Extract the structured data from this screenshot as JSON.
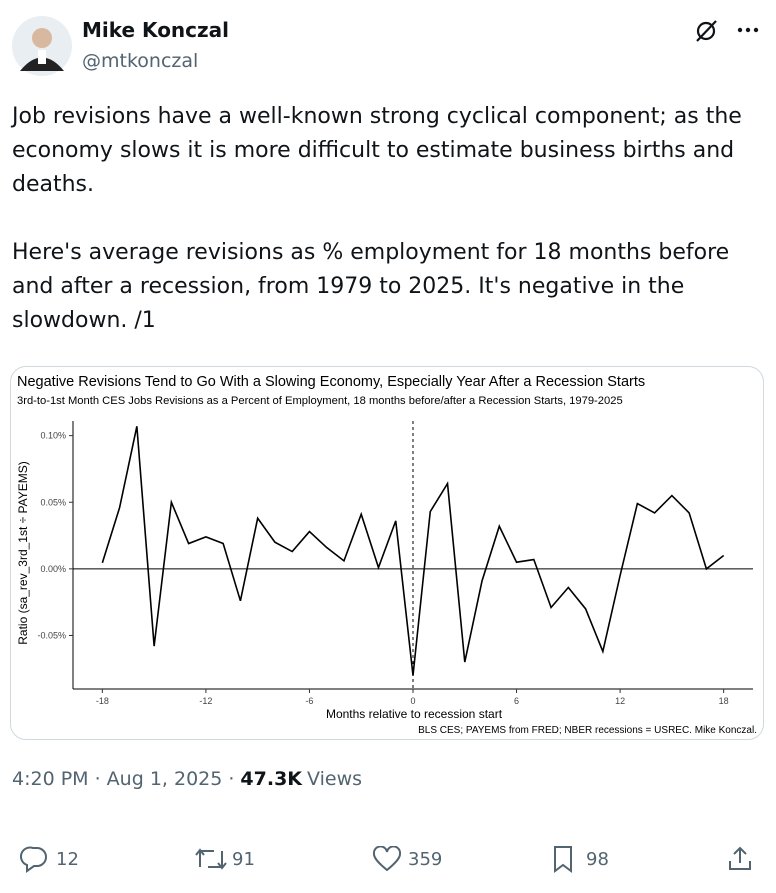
{
  "tweet": {
    "name": "Mike Konczal",
    "handle": "@mtkonczal",
    "paragraphs": [
      "Job revisions have a well-known strong cyclical component; as the economy slows it is more difficult to estimate business births and deaths.",
      "Here's average revisions as % employment for 18 months before and after a recession, from 1979 to 2025.  It's negative in the slowdown. /1"
    ],
    "timestamp": "4:20 PM · Aug 1, 2025 ·",
    "views": "47.3K",
    "views_label": "Views",
    "replies": 12,
    "reposts": 91,
    "likes": 359,
    "bookmarks": 98
  },
  "chart_data": {
    "type": "line",
    "title": "Negative Revisions Tend to Go With a Slowing Economy, Especially Year After a Recession Starts",
    "subtitle": "3rd-to-1st Month CES Jobs Revisions as a Percent of Employment, 18 months before/after a Recession Starts, 1979-2025",
    "xlabel": "Months relative to recession start",
    "ylabel": "Ratio (sa_rev_3rd_1st ÷ PAYEMS)",
    "caption": "BLS CES; PAYEMS from FRED; NBER recessions = USREC. Mike Konczal.",
    "x": [
      -18,
      -17,
      -16,
      -15,
      -14,
      -13,
      -12,
      -11,
      -10,
      -9,
      -8,
      -7,
      -6,
      -5,
      -4,
      -3,
      -2,
      -1,
      0,
      1,
      2,
      3,
      4,
      5,
      6,
      7,
      8,
      9,
      10,
      11,
      12,
      13,
      14,
      15,
      16,
      17,
      18
    ],
    "series": [
      {
        "name": "Ratio",
        "color": "#000000",
        "values": [
          0.0045,
          0.046,
          0.107,
          -0.058,
          0.05,
          0.019,
          0.024,
          0.019,
          -0.024,
          0.038,
          0.02,
          0.013,
          0.028,
          0.016,
          0.006,
          0.041,
          0.001,
          0.036,
          -0.08,
          0.043,
          0.064,
          -0.07,
          -0.009,
          0.032,
          0.005,
          0.007,
          -0.029,
          -0.014,
          -0.03,
          -0.062,
          -0.005,
          0.049,
          0.042,
          0.055,
          0.042,
          0.0,
          0.01
        ]
      }
    ],
    "xlim": [
      -19.7,
      19.7
    ],
    "ylim": [
      -0.0902,
      0.111
    ],
    "xticks": [
      -18,
      -12,
      -6,
      0,
      6,
      12,
      18
    ],
    "yticks": [
      {
        "value": -0.05,
        "label": "-0.05%"
      },
      {
        "value": 0,
        "label": "0.00%"
      },
      {
        "value": 0.05,
        "label": "0.05%"
      },
      {
        "value": 0.1,
        "label": "0.10%"
      }
    ],
    "hline": 0,
    "vline": 0
  }
}
